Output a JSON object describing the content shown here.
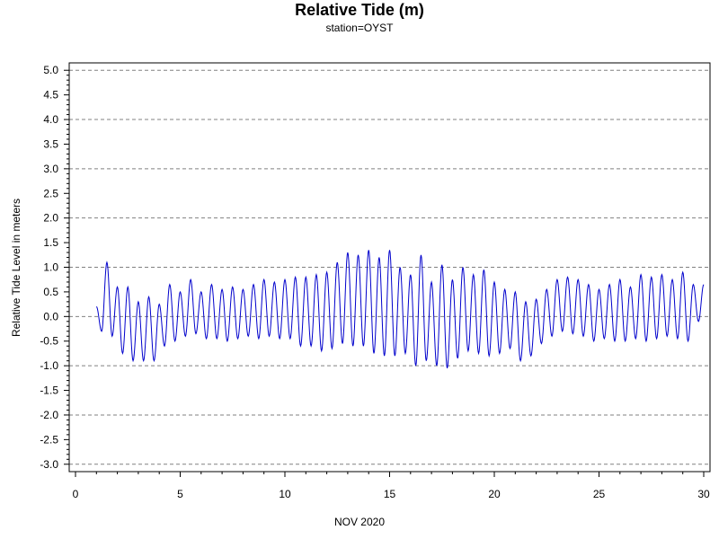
{
  "chart_data": {
    "type": "line",
    "title": "Relative Tide (m)",
    "subtitle": "station=OYST",
    "xlabel": "NOV 2020",
    "ylabel": "Relative Tide Level in meters",
    "xlim": [
      -0.3,
      30.3
    ],
    "ylim": [
      -3.15,
      5.15
    ],
    "x_ticks": [
      0,
      5,
      10,
      15,
      20,
      25,
      30
    ],
    "y_ticks": [
      "5.0",
      "4.5",
      "4.0",
      "3.5",
      "3.0",
      "2.5",
      "2.0",
      "1.5",
      "1.0",
      "0.5",
      "0.0",
      "-0.5",
      "-1.0",
      "-1.5",
      "-2.0",
      "-2.5",
      "-3.0"
    ],
    "gridlines_y": [
      5,
      4,
      3,
      2,
      1,
      0,
      -1,
      -2,
      -3
    ],
    "grid": "horizontal dashed at integer values",
    "series_color": "#0000cc",
    "series": [
      {
        "x": [
          1.0,
          1.25,
          1.5,
          1.75,
          2.0,
          2.25,
          2.5,
          2.75,
          3.0,
          3.25,
          3.5,
          3.75,
          4.0,
          4.25,
          4.5,
          4.75,
          5.0,
          5.25,
          5.5,
          5.75,
          6.0,
          6.25,
          6.5,
          6.75,
          7.0,
          7.25,
          7.5,
          7.75,
          8.0,
          8.25,
          8.5,
          8.75,
          9.0,
          9.25,
          9.5,
          9.75,
          10.0,
          10.25,
          10.5,
          10.75,
          11.0,
          11.25,
          11.5,
          11.75,
          12.0,
          12.25,
          12.5,
          12.75,
          13.0,
          13.25,
          13.5,
          13.75,
          14.0,
          14.25,
          14.5,
          14.75,
          15.0,
          15.25,
          15.5,
          15.75,
          16.0,
          16.25,
          16.5,
          16.75,
          17.0,
          17.25,
          17.5,
          17.75,
          18.0,
          18.25,
          18.5,
          18.75,
          19.0,
          19.25,
          19.5,
          19.75,
          20.0,
          20.25,
          20.5,
          20.75,
          21.0,
          21.25,
          21.5,
          21.75,
          22.0,
          22.25,
          22.5,
          22.75,
          23.0,
          23.25,
          23.5,
          23.75,
          24.0,
          24.25,
          24.5,
          24.75,
          25.0,
          25.25,
          25.5,
          25.75,
          26.0,
          26.25,
          26.5,
          26.75,
          27.0,
          27.25,
          27.5,
          27.75,
          28.0,
          28.25,
          28.5,
          28.75,
          29.0,
          29.25,
          29.5,
          29.75,
          30.0
        ],
        "y": [
          0.2,
          -0.3,
          1.1,
          -0.4,
          0.6,
          -0.75,
          0.6,
          -0.9,
          0.3,
          -0.9,
          0.4,
          -0.9,
          0.25,
          -0.6,
          0.65,
          -0.5,
          0.5,
          -0.4,
          0.75,
          -0.35,
          0.5,
          -0.45,
          0.65,
          -0.45,
          0.55,
          -0.5,
          0.6,
          -0.45,
          0.55,
          -0.4,
          0.65,
          -0.45,
          0.75,
          -0.4,
          0.7,
          -0.45,
          0.75,
          -0.45,
          0.8,
          -0.6,
          0.8,
          -0.6,
          0.85,
          -0.7,
          0.9,
          -0.65,
          1.1,
          -0.55,
          1.3,
          -0.6,
          1.25,
          -0.6,
          1.35,
          -0.75,
          1.2,
          -0.8,
          1.35,
          -0.8,
          1.0,
          -0.75,
          0.85,
          -1.0,
          1.25,
          -0.9,
          0.7,
          -1.0,
          1.05,
          -1.05,
          0.75,
          -0.85,
          1.0,
          -0.7,
          0.85,
          -0.75,
          0.95,
          -0.8,
          0.7,
          -0.75,
          0.55,
          -0.65,
          0.5,
          -0.9,
          0.3,
          -0.8,
          0.35,
          -0.55,
          0.55,
          -0.4,
          0.75,
          -0.3,
          0.8,
          -0.35,
          0.75,
          -0.4,
          0.65,
          -0.5,
          0.55,
          -0.45,
          0.65,
          -0.5,
          0.75,
          -0.5,
          0.6,
          -0.45,
          0.85,
          -0.5,
          0.8,
          -0.45,
          0.85,
          -0.4,
          0.75,
          -0.45,
          0.9,
          -0.5,
          0.65,
          -0.1,
          0.65
        ]
      }
    ]
  }
}
